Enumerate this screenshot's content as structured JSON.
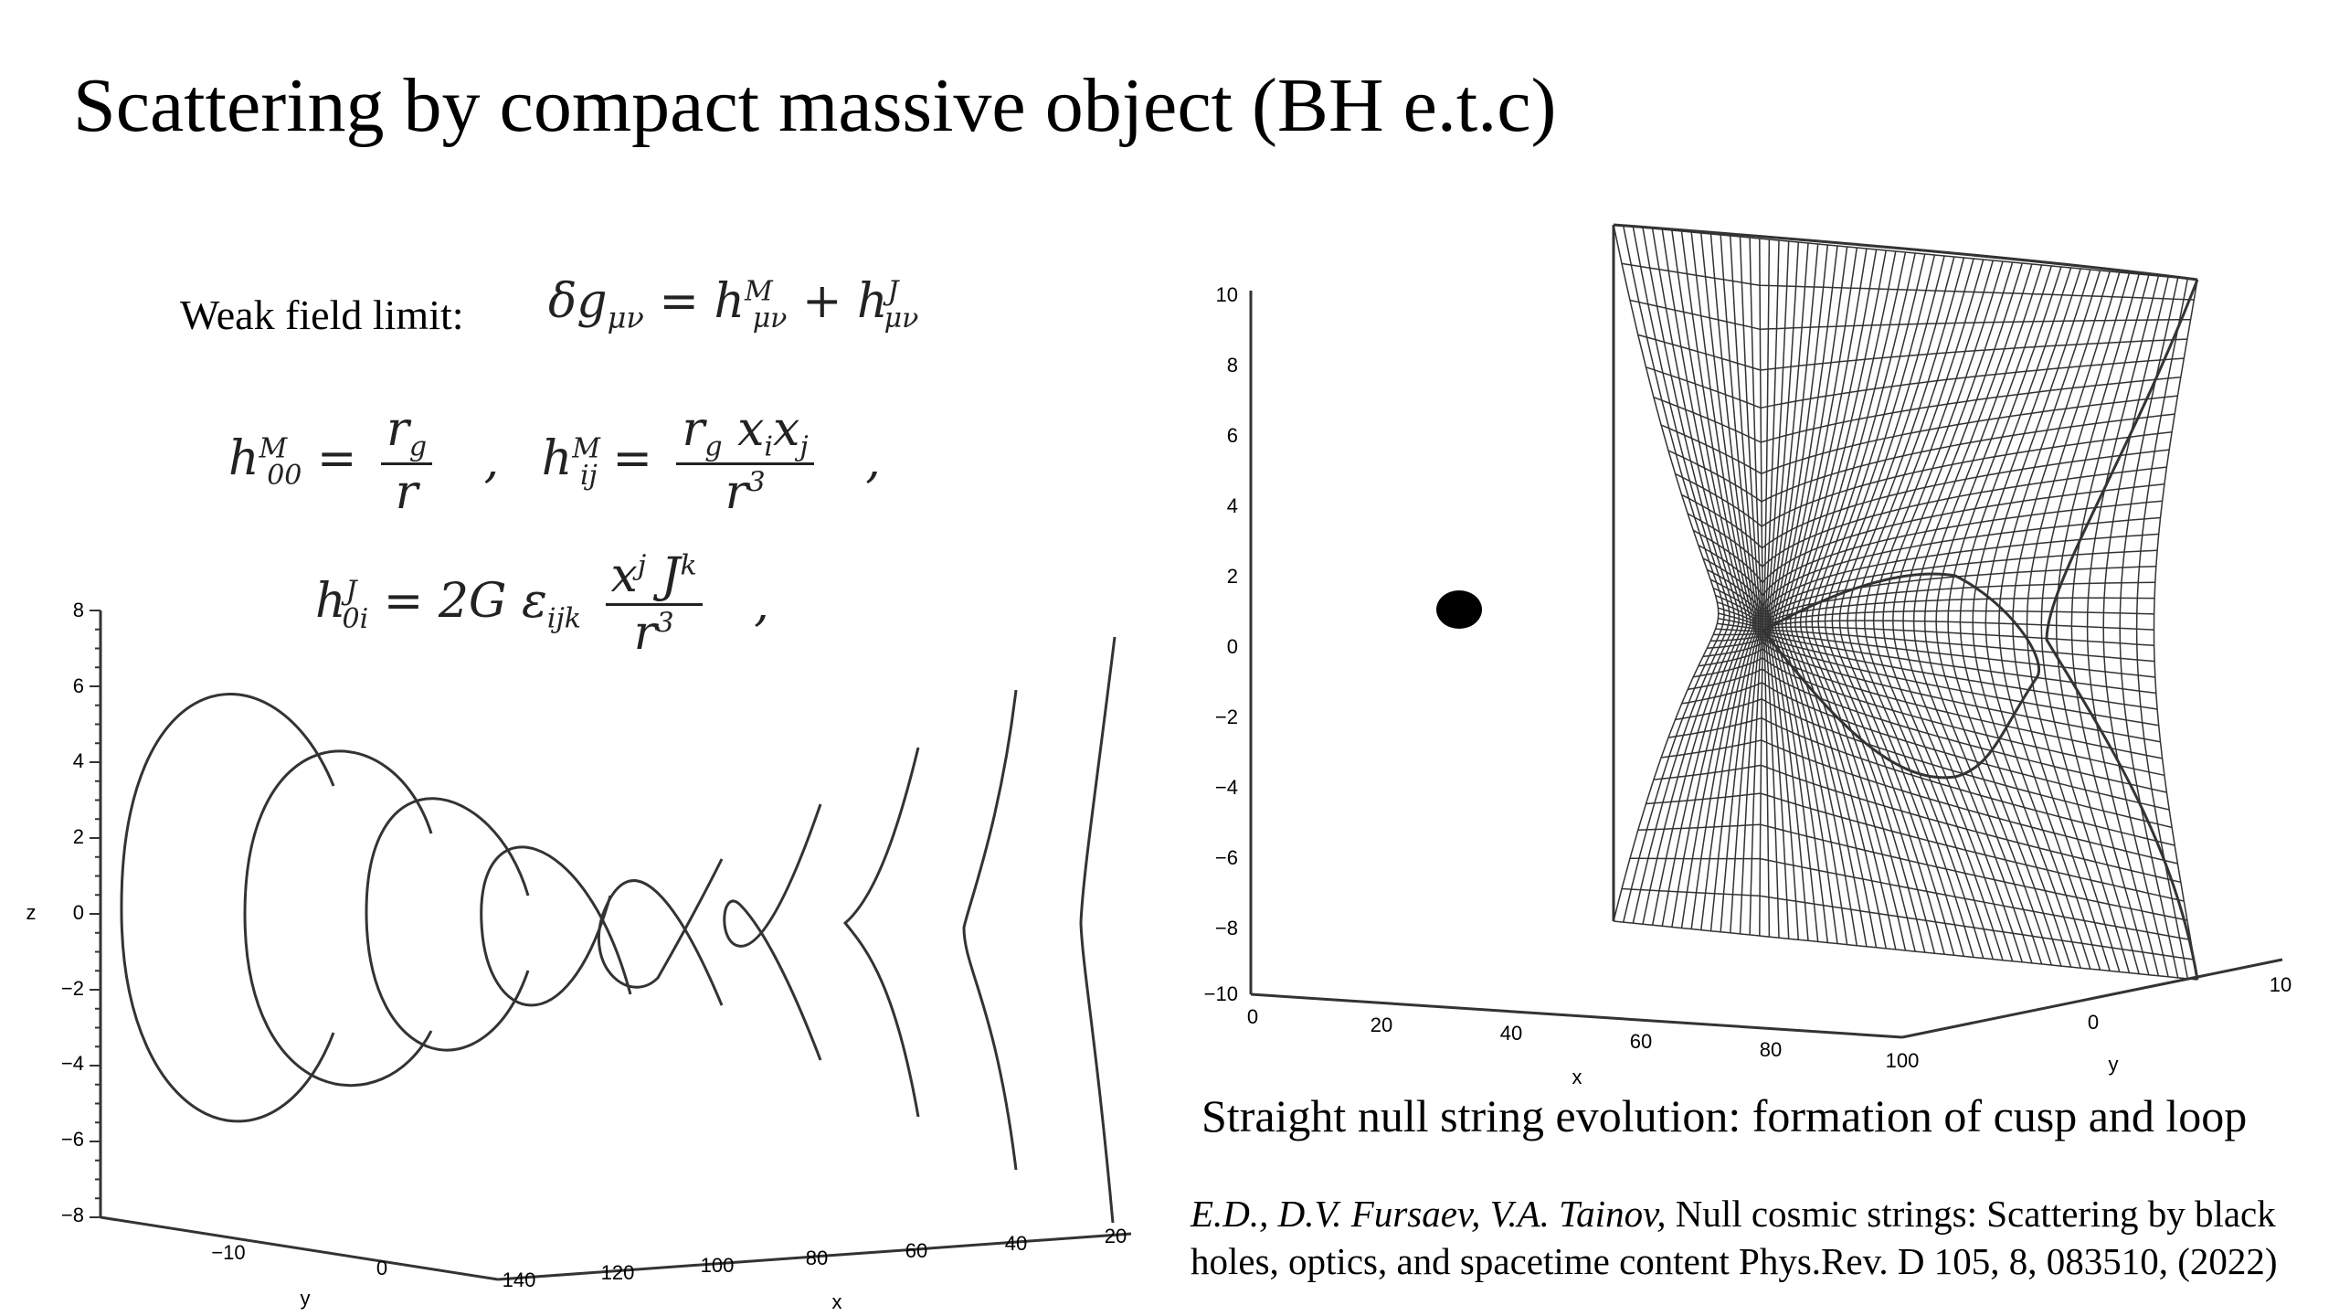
{
  "title": "Scattering by compact massive object (BH e.t.c)",
  "formulas": {
    "weak_label": "Weak field limit:",
    "metric_split": "δg_{μν} = h^M_{μν} + h^J_{μν}",
    "mass_terms": "h^M_00 = r_g / r , h^M_ij = r_g x_i x_j / r^3 ,",
    "spin_term": "h^J_0i = 2G ε_ijk x^j J^k / r^3 ,"
  },
  "left_plot": {
    "z_axis_label": "z",
    "y_axis_label": "y",
    "x_axis_label": "x",
    "z_ticks": [
      "8",
      "6",
      "4",
      "2",
      "0",
      "−2",
      "−4",
      "−6",
      "−8"
    ],
    "y_ticks": [
      "−10",
      "0"
    ],
    "x_ticks": [
      "140",
      "120",
      "100",
      "80",
      "60",
      "40",
      "20"
    ]
  },
  "right_plot": {
    "vert_ticks": [
      "10",
      "8",
      "6",
      "4",
      "2",
      "0",
      "−2",
      "−4",
      "−6",
      "−8",
      "−10"
    ],
    "x_axis_label": "x",
    "y_axis_label": "y",
    "x_ticks": [
      "0",
      "20",
      "40",
      "60",
      "80",
      "100"
    ],
    "y_ticks": [
      "0",
      "10"
    ]
  },
  "caption": "Straight null string evolution: formation of cusp and loop",
  "citation": {
    "authors": "E.D., D.V. Fursaev, V.A. Tainov,",
    "text_line1": "Null cosmic strings: Scattering by black",
    "text_line2": "holes, optics, and spacetime content Phys.Rev. D 105, 8, 083510, (2022)"
  },
  "colors": {
    "ink": "#000000",
    "curve": "#333333",
    "background": "#ffffff"
  }
}
